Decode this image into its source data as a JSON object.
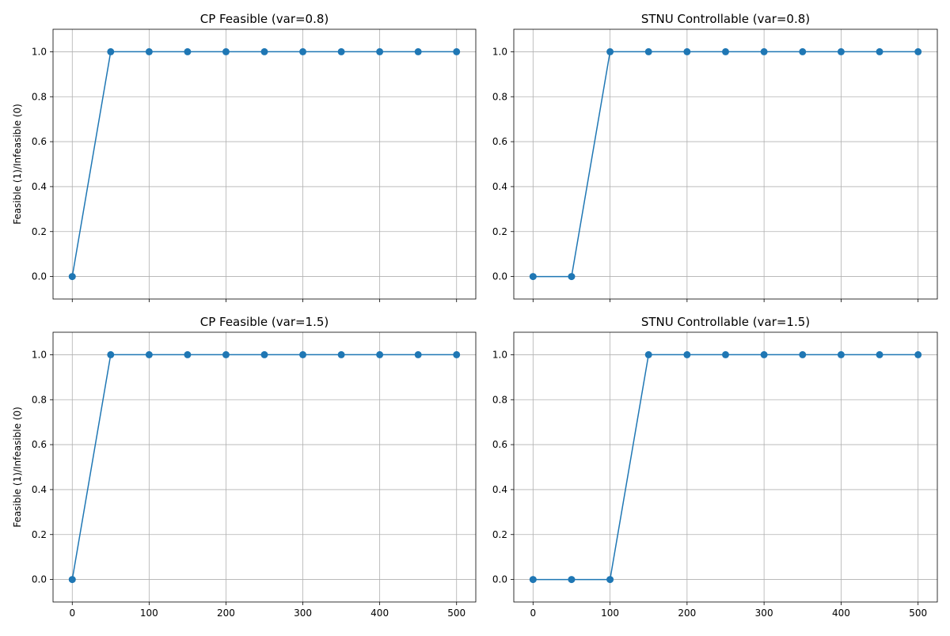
{
  "colors": {
    "series": "#1f77b4",
    "grid": "#b0b0b0",
    "axes": "#000000",
    "background": "#ffffff"
  },
  "x_ticks": [
    0,
    100,
    200,
    300,
    400,
    500
  ],
  "y_ticks": [
    0.0,
    0.2,
    0.4,
    0.6,
    0.8,
    1.0
  ],
  "chart_data": [
    {
      "type": "line",
      "title": "CP Feasible (var=0.8)",
      "xlabel": "",
      "ylabel": "Feasible (1)/Infeasible (0)",
      "x": [
        0,
        50,
        100,
        150,
        200,
        250,
        300,
        350,
        400,
        450,
        500
      ],
      "series": [
        {
          "values": [
            0,
            1,
            1,
            1,
            1,
            1,
            1,
            1,
            1,
            1,
            1
          ]
        }
      ],
      "xlim": [
        -25,
        525
      ],
      "ylim": [
        -0.1,
        1.1
      ],
      "grid": true,
      "marker": "circle",
      "show_x_tick_labels": false
    },
    {
      "type": "line",
      "title": "STNU Controllable (var=0.8)",
      "xlabel": "",
      "ylabel": "",
      "x": [
        0,
        50,
        100,
        150,
        200,
        250,
        300,
        350,
        400,
        450,
        500
      ],
      "series": [
        {
          "values": [
            0,
            0,
            1,
            1,
            1,
            1,
            1,
            1,
            1,
            1,
            1
          ]
        }
      ],
      "xlim": [
        -25,
        525
      ],
      "ylim": [
        -0.1,
        1.1
      ],
      "grid": true,
      "marker": "circle",
      "show_x_tick_labels": false
    },
    {
      "type": "line",
      "title": "CP Feasible (var=1.5)",
      "xlabel": "",
      "ylabel": "Feasible (1)/Infeasible (0)",
      "x": [
        0,
        50,
        100,
        150,
        200,
        250,
        300,
        350,
        400,
        450,
        500
      ],
      "series": [
        {
          "values": [
            0,
            1,
            1,
            1,
            1,
            1,
            1,
            1,
            1,
            1,
            1
          ]
        }
      ],
      "xlim": [
        -25,
        525
      ],
      "ylim": [
        -0.1,
        1.1
      ],
      "grid": true,
      "marker": "circle",
      "show_x_tick_labels": true
    },
    {
      "type": "line",
      "title": "STNU Controllable (var=1.5)",
      "xlabel": "",
      "ylabel": "",
      "x": [
        0,
        50,
        100,
        150,
        200,
        250,
        300,
        350,
        400,
        450,
        500
      ],
      "series": [
        {
          "values": [
            0,
            0,
            0,
            1,
            1,
            1,
            1,
            1,
            1,
            1,
            1
          ]
        }
      ],
      "xlim": [
        -25,
        525
      ],
      "ylim": [
        -0.1,
        1.1
      ],
      "grid": true,
      "marker": "circle",
      "show_x_tick_labels": true
    }
  ]
}
